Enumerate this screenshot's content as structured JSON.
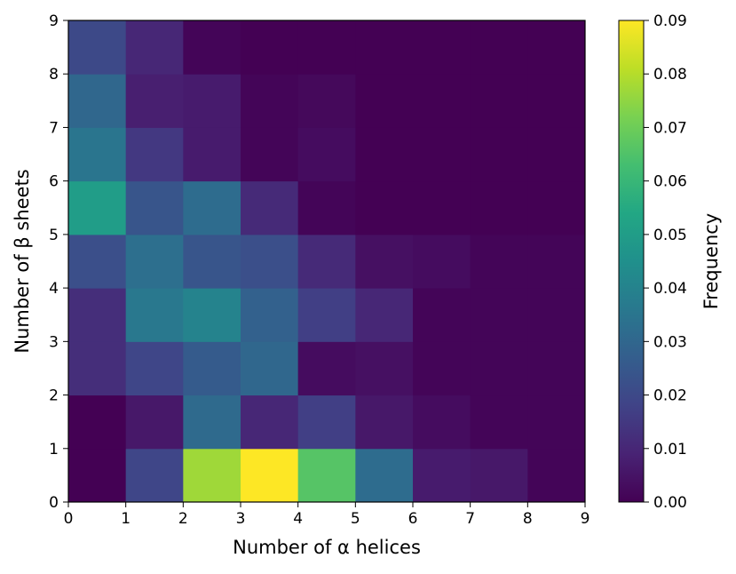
{
  "chart_data": {
    "type": "heatmap",
    "title": "",
    "xlabel": "Number of α helices",
    "ylabel": "Number of β sheets",
    "xlim": [
      0,
      9
    ],
    "ylim": [
      0,
      9
    ],
    "x_ticks": [
      "0",
      "1",
      "2",
      "3",
      "4",
      "5",
      "6",
      "7",
      "8",
      "9"
    ],
    "y_ticks": [
      "0",
      "1",
      "2",
      "3",
      "4",
      "5",
      "6",
      "7",
      "8",
      "9"
    ],
    "colorbar": {
      "label": "Frequency",
      "range": [
        0,
        0.09
      ],
      "ticks": [
        "0.00",
        "0.01",
        "0.02",
        "0.03",
        "0.04",
        "0.05",
        "0.06",
        "0.07",
        "0.08",
        "0.09"
      ],
      "colormap": "viridis"
    },
    "grid": false,
    "rows_from_bottom": [
      [
        0.0,
        0.019,
        0.077,
        0.09,
        0.066,
        0.032,
        0.007,
        0.006,
        0.001
      ],
      [
        0.0,
        0.006,
        0.031,
        0.01,
        0.017,
        0.006,
        0.003,
        0.001,
        0.001
      ],
      [
        0.012,
        0.019,
        0.026,
        0.03,
        0.003,
        0.004,
        0.001,
        0.001,
        0.001
      ],
      [
        0.012,
        0.036,
        0.04,
        0.028,
        0.017,
        0.01,
        0.001,
        0.001,
        0.001
      ],
      [
        0.022,
        0.033,
        0.024,
        0.022,
        0.011,
        0.004,
        0.003,
        0.001,
        0.001
      ],
      [
        0.05,
        0.024,
        0.032,
        0.011,
        0.001,
        0.0,
        0.0,
        0.0,
        0.0
      ],
      [
        0.035,
        0.015,
        0.007,
        0.001,
        0.003,
        0.0,
        0.0,
        0.0,
        0.0
      ],
      [
        0.03,
        0.008,
        0.007,
        0.001,
        0.002,
        0.0,
        0.0,
        0.0,
        0.0
      ],
      [
        0.02,
        0.01,
        0.001,
        0.0,
        0.0,
        0.0,
        0.0,
        0.0,
        0.0
      ]
    ]
  }
}
